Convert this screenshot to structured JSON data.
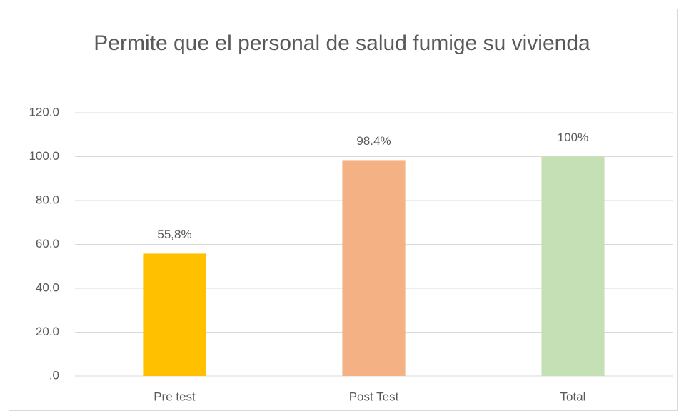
{
  "chart_data": {
    "type": "bar",
    "title": "Permite que el personal de salud fumige su vivienda",
    "categories": [
      "Pre test",
      "Post Test",
      "Total"
    ],
    "values": [
      55.8,
      98.4,
      100
    ],
    "value_labels": [
      "55,8%",
      "98.4%",
      "100%"
    ],
    "colors": [
      "#ffc000",
      "#f4b183",
      "#c5e0b4"
    ],
    "ylim": [
      0,
      120
    ],
    "yticks": [
      {
        "value": 0,
        "label": ".0"
      },
      {
        "value": 20,
        "label": "20.0"
      },
      {
        "value": 40,
        "label": "40.0"
      },
      {
        "value": 60,
        "label": "60.0"
      },
      {
        "value": 80,
        "label": "80.0"
      },
      {
        "value": 100,
        "label": "100.0"
      },
      {
        "value": 120,
        "label": "120.0"
      }
    ],
    "grid": true
  }
}
